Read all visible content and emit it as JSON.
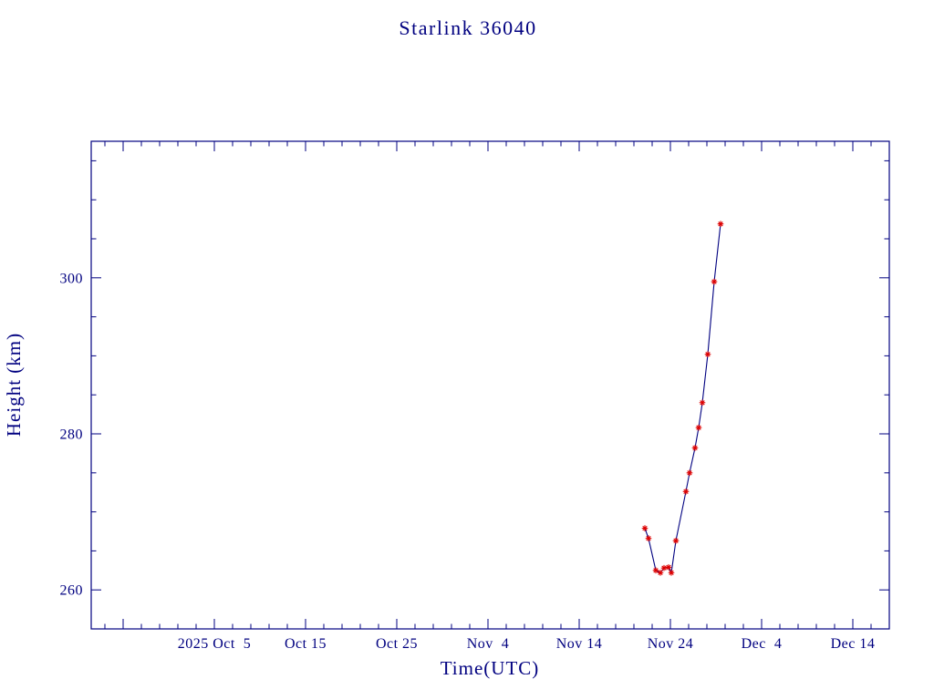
{
  "page": {
    "background": "#ffffff"
  },
  "chart_data": {
    "type": "line",
    "title": "Starlink 36040",
    "xlabel": "Time(UTC)",
    "ylabel": "Height (km)",
    "grid": false,
    "legend": false,
    "colors": {
      "axis": "#000080",
      "text": "#000080",
      "line": "#000080",
      "marker": "#dd0000",
      "background": "#ffffff"
    },
    "x_axis": {
      "unit": "date",
      "encoding": "days relative to 2025 Oct 5",
      "lim": [
        -13.5,
        74
      ],
      "major_tick_step": 10,
      "minor_tick_step": 2,
      "ticks": [
        {
          "value": 0,
          "label": "2025 Oct  5"
        },
        {
          "value": 10,
          "label": "Oct 15"
        },
        {
          "value": 20,
          "label": "Oct 25"
        },
        {
          "value": 30,
          "label": "Nov  4"
        },
        {
          "value": 40,
          "label": "Nov 14"
        },
        {
          "value": 50,
          "label": "Nov 24"
        },
        {
          "value": 60,
          "label": "Dec  4"
        },
        {
          "value": 70,
          "label": "Dec 14"
        }
      ]
    },
    "y_axis": {
      "unit": "km",
      "lim": [
        255,
        317.5
      ],
      "major_tick_step": 20,
      "minor_tick_step": 5,
      "ticks": [
        {
          "value": 260,
          "label": "260"
        },
        {
          "value": 280,
          "label": "280"
        },
        {
          "value": 300,
          "label": "300"
        }
      ]
    },
    "series": [
      {
        "name": "Starlink 36040 height",
        "line_color": "#000080",
        "marker": "asterisk",
        "marker_color": "#dd0000",
        "points": [
          [
            47.2,
            267.9
          ],
          [
            47.6,
            266.6
          ],
          [
            48.4,
            262.5
          ],
          [
            48.9,
            262.2
          ],
          [
            49.3,
            262.8
          ],
          [
            49.8,
            262.9
          ],
          [
            50.1,
            262.2
          ],
          [
            50.6,
            266.3
          ],
          [
            51.7,
            272.6
          ],
          [
            52.1,
            275.0
          ],
          [
            52.7,
            278.2
          ],
          [
            53.1,
            280.8
          ],
          [
            53.5,
            284.0
          ],
          [
            54.1,
            290.2
          ],
          [
            54.8,
            299.5
          ],
          [
            55.5,
            306.9
          ]
        ]
      }
    ]
  }
}
